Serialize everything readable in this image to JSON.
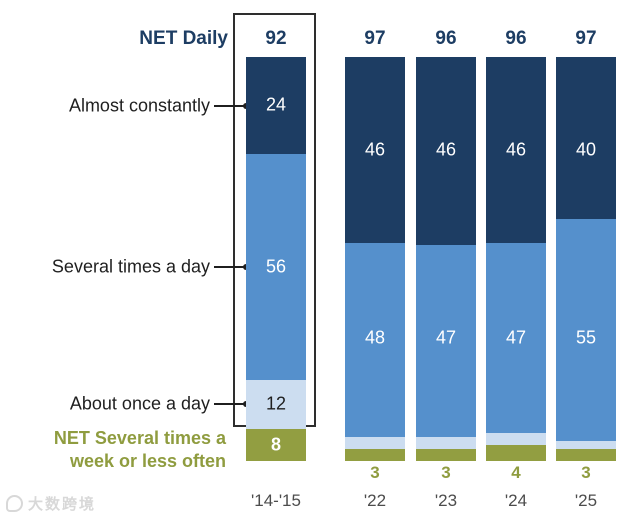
{
  "colors": {
    "navy": "#1d3d63",
    "blue": "#5590cc",
    "lightblue": "#ccddf0",
    "olive": "#929e41",
    "olive_text": "#8f9c3f",
    "navy_text": "#1d3d63",
    "label_black": "#1f1f1f",
    "year_gray": "#4c4c4c"
  },
  "labels": {
    "net_daily": "NET Daily",
    "almost_constantly": "Almost constantly",
    "several_times_day": "Several times a day",
    "about_once_day": "About once a day",
    "net_weekly": "NET Several times a week or less often"
  },
  "watermark": {
    "text": "大数跨境"
  },
  "chart_data": {
    "type": "bar",
    "stacked": true,
    "unit": "%",
    "legend_position": "left-annotations",
    "grid": false,
    "highlighted_category_index": 0,
    "categories": [
      "'14-'15",
      "'22",
      "'23",
      "'24",
      "'25"
    ],
    "net_daily_values": [
      92,
      97,
      96,
      96,
      97
    ],
    "series": [
      {
        "name": "Almost constantly",
        "color_key": "navy",
        "values": [
          24,
          46,
          46,
          46,
          40
        ],
        "inside_labels": [
          1,
          1,
          1,
          1,
          1
        ],
        "text_style": "white"
      },
      {
        "name": "Several times a day",
        "color_key": "blue",
        "values": [
          56,
          48,
          47,
          47,
          55
        ],
        "inside_labels": [
          1,
          1,
          1,
          1,
          1
        ],
        "text_style": "white"
      },
      {
        "name": "About once a day",
        "color_key": "lightblue",
        "values": [
          12,
          3,
          3,
          3,
          2
        ],
        "inside_labels": [
          1,
          0,
          0,
          0,
          0
        ],
        "text_style": "dark"
      },
      {
        "name": "NET Several times a week or less often",
        "color_key": "olive",
        "values": [
          8,
          3,
          3,
          4,
          3
        ],
        "inside_labels": [
          1,
          0,
          0,
          0,
          0
        ],
        "below_labels": [
          0,
          1,
          1,
          1,
          1
        ],
        "text_style": "white-bold"
      }
    ]
  }
}
